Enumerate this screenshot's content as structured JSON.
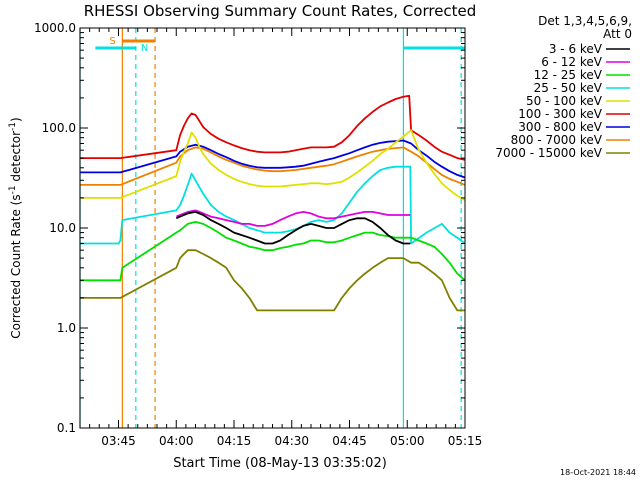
{
  "chart_data": {
    "type": "line",
    "title": "RHESSI Observing Summary Count Rates, Corrected",
    "xlabel": "Start Time (08-May-13 03:35:02)",
    "ylabel_main": "Corrected Count Rate (s",
    "ylabel_sup": "-1",
    "ylabel_mid": " detector",
    "ylabel_end": ")",
    "yscale": "log",
    "ylim": [
      0.1,
      1000
    ],
    "xlim": [
      0,
      100
    ],
    "xticks": [
      {
        "t": 10,
        "label": "03:45"
      },
      {
        "t": 25,
        "label": "04:00"
      },
      {
        "t": 40,
        "label": "04:15"
      },
      {
        "t": 55,
        "label": "04:30"
      },
      {
        "t": 70,
        "label": "04:45"
      },
      {
        "t": 85,
        "label": "05:00"
      },
      {
        "t": 100,
        "label": "05:15"
      }
    ],
    "yticks": [
      {
        "v": 0.1,
        "label": "0.1"
      },
      {
        "v": 1,
        "label": "1.0"
      },
      {
        "v": 10,
        "label": "10.0"
      },
      {
        "v": 100,
        "label": "100.0"
      },
      {
        "v": 1000,
        "label": "1000.0"
      }
    ],
    "legend_header": [
      "Det 1,3,4,5,6,9,",
      "Att 0"
    ],
    "series": [
      {
        "name": "3 - 6 keV",
        "color": "#000000",
        "x": [
          25,
          26,
          28,
          30,
          32,
          34,
          36,
          38,
          40,
          42,
          44,
          46,
          48,
          50,
          52,
          54,
          56,
          58,
          60,
          62,
          64,
          66,
          68,
          70,
          72,
          74,
          76,
          78,
          80,
          82,
          84,
          85.8
        ],
        "y": [
          12.5,
          13,
          14,
          14.5,
          13.5,
          12,
          11,
          10,
          9,
          8.5,
          8,
          7.5,
          7,
          7,
          7.5,
          8.5,
          9.5,
          10.5,
          11,
          10.5,
          10,
          10,
          11,
          12,
          12.5,
          12.5,
          11.5,
          10,
          8.5,
          7.5,
          7,
          7
        ]
      },
      {
        "name": "6 - 12 keV",
        "color": "#e000e0",
        "x": [
          25,
          26,
          28,
          30,
          32,
          34,
          36,
          38,
          40,
          42,
          44,
          46,
          48,
          50,
          52,
          54,
          56,
          58,
          60,
          62,
          64,
          66,
          68,
          70,
          72,
          74,
          76,
          78,
          80,
          82,
          84,
          85.8
        ],
        "y": [
          13,
          13.5,
          14.5,
          15,
          14,
          13,
          12.5,
          12,
          11.5,
          11,
          11,
          10.5,
          10.5,
          11,
          12,
          13,
          14,
          14.5,
          14,
          13,
          12.5,
          12.5,
          13,
          13.5,
          14,
          14.5,
          14.5,
          14,
          13.5,
          13.5,
          13.5,
          13.5
        ]
      },
      {
        "name": "12 - 25 keV",
        "color": "#00e000",
        "x": [
          0,
          4,
          8,
          10.5,
          11,
          25,
          26,
          28,
          30,
          32,
          34,
          36,
          38,
          40,
          42,
          44,
          46,
          48,
          50,
          52,
          54,
          56,
          58,
          60,
          62,
          64,
          66,
          68,
          70,
          72,
          74,
          76,
          78,
          80,
          82,
          84,
          86,
          88,
          90,
          92,
          94,
          96,
          98,
          100
        ],
        "y": [
          3,
          3,
          3,
          3,
          4,
          9,
          9.5,
          11,
          11.5,
          11,
          10,
          9,
          8,
          7.5,
          7,
          6.5,
          6.3,
          6,
          6,
          6.3,
          6.5,
          6.8,
          7,
          7.5,
          7.5,
          7.2,
          7.2,
          7.5,
          8,
          8.5,
          9,
          9,
          8.5,
          8.3,
          8,
          8,
          8,
          7.5,
          7,
          6.5,
          5.5,
          4.5,
          3.5,
          3
        ]
      },
      {
        "name": "25 - 50 keV",
        "color": "#00e0e0",
        "x": [
          0,
          4,
          8,
          10,
          10.5,
          11,
          25,
          26,
          27,
          28,
          29,
          30,
          32,
          34,
          36,
          38,
          40,
          42,
          44,
          46,
          48,
          50,
          52,
          54,
          56,
          58,
          60,
          62,
          64,
          66,
          68,
          70,
          72,
          74,
          76,
          78,
          80,
          82,
          84,
          85.8,
          86,
          90,
          94,
          96,
          98,
          100
        ],
        "y": [
          7,
          7,
          7,
          7,
          7.5,
          12,
          15,
          17,
          21,
          27,
          35,
          30,
          22,
          17,
          14.5,
          13,
          12,
          11,
          10,
          9.5,
          9,
          9,
          9,
          9.3,
          9.7,
          10.5,
          11.5,
          12,
          11.5,
          12,
          14,
          18,
          23,
          28,
          33,
          38,
          40,
          41,
          41,
          41,
          7,
          9,
          11,
          9,
          8,
          7
        ]
      },
      {
        "name": "50 - 100 keV",
        "color": "#e0e000",
        "x": [
          0,
          5,
          10,
          10.5,
          25,
          26,
          27,
          28,
          29,
          30,
          31,
          32,
          34,
          36,
          38,
          40,
          42,
          44,
          46,
          48,
          50,
          52,
          54,
          56,
          58,
          60,
          62,
          64,
          66,
          68,
          70,
          72,
          74,
          76,
          78,
          80,
          82,
          84,
          86,
          88,
          90,
          92,
          94,
          96,
          98,
          100
        ],
        "y": [
          20,
          20,
          20,
          20,
          33,
          46,
          58,
          70,
          90,
          80,
          65,
          55,
          44,
          38,
          34,
          31,
          29,
          27.5,
          26.5,
          26,
          26,
          26,
          26.5,
          27,
          27.5,
          28,
          28,
          27.5,
          28,
          29,
          32,
          36,
          41,
          47,
          55,
          62,
          72,
          82,
          95,
          60,
          45,
          35,
          28,
          24,
          21,
          19
        ]
      },
      {
        "name": "100 - 300 keV",
        "color": "#e00000",
        "x": [
          0,
          5,
          10,
          10.5,
          25,
          26,
          27,
          28,
          29,
          30,
          31,
          32,
          34,
          36,
          38,
          40,
          42,
          44,
          46,
          48,
          50,
          52,
          54,
          56,
          58,
          60,
          62,
          64,
          66,
          68,
          70,
          72,
          74,
          76,
          78,
          80,
          82,
          84,
          85.5,
          86,
          88,
          90,
          92,
          94,
          96,
          98,
          100
        ],
        "y": [
          50,
          50,
          50,
          50,
          60,
          85,
          105,
          125,
          140,
          135,
          118,
          102,
          87,
          78,
          72,
          67,
          63,
          60,
          58,
          57,
          57,
          57,
          58,
          60,
          62,
          64,
          64,
          64,
          65,
          72,
          85,
          105,
          125,
          145,
          165,
          180,
          195,
          205,
          210,
          95,
          85,
          75,
          65,
          58,
          54,
          50,
          48
        ]
      },
      {
        "name": "300 - 800 keV",
        "color": "#0000e0",
        "x": [
          0,
          5,
          10,
          10.5,
          25,
          26,
          28,
          30,
          32,
          34,
          36,
          38,
          40,
          42,
          44,
          46,
          48,
          50,
          52,
          54,
          56,
          58,
          60,
          62,
          64,
          66,
          68,
          70,
          72,
          74,
          76,
          78,
          80,
          82,
          84,
          86,
          88,
          90,
          92,
          94,
          96,
          98,
          100
        ],
        "y": [
          36,
          36,
          36,
          36,
          52,
          58,
          65,
          68,
          65,
          60,
          55,
          51,
          47,
          44,
          42,
          40.5,
          40,
          40,
          40,
          40.5,
          41,
          42,
          44,
          46,
          48,
          50,
          53,
          56,
          60,
          64,
          68,
          71,
          73,
          74,
          75,
          70,
          60,
          53,
          46,
          41,
          37,
          34,
          32
        ]
      },
      {
        "name": "800 - 7000 keV",
        "color": "#f08000",
        "x": [
          0,
          5,
          10,
          10.5,
          25,
          26,
          28,
          30,
          32,
          34,
          36,
          38,
          40,
          42,
          44,
          46,
          48,
          50,
          52,
          54,
          56,
          58,
          60,
          62,
          64,
          66,
          68,
          70,
          72,
          74,
          76,
          78,
          80,
          82,
          84,
          86,
          88,
          90,
          92,
          94,
          96,
          98,
          100
        ],
        "y": [
          27,
          27,
          27,
          27,
          45,
          52,
          60,
          64,
          62,
          57,
          52,
          48,
          45,
          42,
          40,
          38.5,
          37.5,
          37,
          37,
          37.5,
          38,
          39,
          40,
          41,
          42,
          43.5,
          46,
          49,
          52,
          55,
          58,
          60,
          62,
          63,
          64,
          58,
          52,
          45,
          39,
          34,
          31,
          29,
          27
        ]
      },
      {
        "name": "7000 - 15000 keV",
        "color": "#808000",
        "x": [
          0,
          10.5,
          25,
          26,
          27,
          28,
          30,
          32,
          34,
          36,
          38,
          40,
          42,
          44,
          46,
          48,
          50,
          52,
          54,
          56,
          58,
          60,
          62,
          64,
          66,
          68,
          70,
          72,
          74,
          76,
          78,
          80,
          82,
          84,
          86,
          88,
          90,
          92,
          94,
          96,
          98,
          100
        ],
        "y": [
          2,
          2,
          4,
          5,
          5.5,
          6,
          6,
          5.5,
          5,
          4.5,
          4,
          3,
          2.5,
          2,
          1.5,
          1.5,
          1.5,
          1.5,
          1.5,
          1.5,
          1.5,
          1.5,
          1.5,
          1.5,
          1.5,
          2,
          2.5,
          3,
          3.5,
          4,
          4.5,
          5,
          5,
          5,
          4.5,
          4.5,
          4,
          3.5,
          3,
          2,
          1.5,
          1.5
        ]
      }
    ],
    "flags": [
      {
        "label": "S",
        "t0": 11,
        "t1": 19.5,
        "color": "#f08000"
      },
      {
        "label": "N",
        "t0": 4,
        "t1": 14.5,
        "color": "#00e0e0"
      },
      {
        "label": "",
        "t0": 84,
        "t1": 100,
        "color": "#00e0e0"
      }
    ],
    "vlines": [
      {
        "t": 0,
        "color": "#00e0e0",
        "dash": false
      },
      {
        "t": 11,
        "color": "#f08000",
        "dash": false
      },
      {
        "t": 14.5,
        "color": "#00e0e0",
        "dash": true
      },
      {
        "t": 19.5,
        "color": "#f08000",
        "dash": true
      },
      {
        "t": 84,
        "color": "#00e0e0",
        "dash": false
      },
      {
        "t": 99,
        "color": "#00e0e0",
        "dash": true
      }
    ],
    "footer": "18-Oct-2021 18:44"
  }
}
